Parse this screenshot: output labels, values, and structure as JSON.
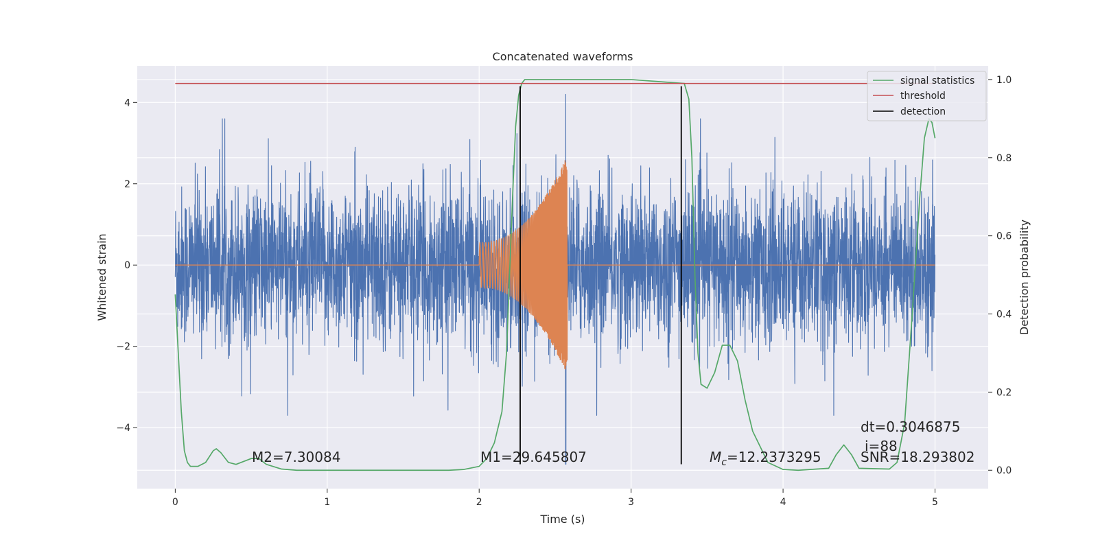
{
  "chart_data": {
    "type": "line",
    "title": "Concatenated waveforms",
    "xlabel": "Time (s)",
    "ylabel_left": "Whitened strain",
    "ylabel_right": "Detection probability",
    "xlim": [
      -0.25,
      5.35
    ],
    "ylim_left": [
      -5.5,
      4.9
    ],
    "ylim_right": [
      -0.047,
      1.035
    ],
    "x_ticks": [
      0,
      1,
      2,
      3,
      4,
      5
    ],
    "x_tick_labels": [
      "0",
      "1",
      "2",
      "3",
      "4",
      "5"
    ],
    "yl_ticks": [
      -4,
      -2,
      0,
      2,
      4
    ],
    "yl_tick_labels": [
      "−4",
      "−2",
      "0",
      "2",
      "4"
    ],
    "yr_ticks": [
      0.0,
      0.2,
      0.4,
      0.6,
      0.8,
      1.0
    ],
    "yr_tick_labels": [
      "0.0",
      "0.2",
      "0.4",
      "0.6",
      "0.8",
      "1.0"
    ],
    "series": [
      {
        "name": "strain",
        "axis": "left",
        "color": "#4c72b0",
        "description": "whitened detector strain, noise around 0 from t=0 to 5 s, spikes up to ~4.2 and down to ~-4.9 near t=2.57"
      },
      {
        "name": "waveform",
        "axis": "left",
        "color": "#dd8452",
        "description": "injected chirp waveform, zero except between t=2.0 and t=2.6 s, amplitude growing from ~0.6 to ~2.7",
        "start": 2.0,
        "merger": 2.58,
        "amp_start": 0.55,
        "amp_end": 2.7
      },
      {
        "name": "signal statistics",
        "axis": "right",
        "color": "#55a868",
        "x": [
          0.0,
          0.02,
          0.04,
          0.06,
          0.08,
          0.1,
          0.15,
          0.2,
          0.25,
          0.27,
          0.3,
          0.35,
          0.4,
          0.5,
          0.55,
          0.6,
          0.7,
          0.8,
          1.0,
          1.5,
          1.8,
          1.9,
          2.0,
          2.05,
          2.1,
          2.15,
          2.18,
          2.2,
          2.22,
          2.24,
          2.26,
          2.28,
          2.3,
          2.4,
          3.0,
          3.35,
          3.38,
          3.4,
          3.42,
          3.44,
          3.46,
          3.5,
          3.55,
          3.6,
          3.65,
          3.7,
          3.75,
          3.8,
          3.9,
          4.0,
          4.1,
          4.3,
          4.35,
          4.4,
          4.45,
          4.5,
          4.7,
          4.75,
          4.8,
          4.85,
          4.9,
          4.93,
          4.96,
          4.98,
          5.0
        ],
        "values": [
          0.45,
          0.3,
          0.15,
          0.05,
          0.02,
          0.01,
          0.01,
          0.02,
          0.05,
          0.055,
          0.045,
          0.02,
          0.015,
          0.03,
          0.03,
          0.015,
          0.003,
          0.0,
          0.0,
          0.0,
          0.0,
          0.002,
          0.01,
          0.03,
          0.07,
          0.15,
          0.3,
          0.5,
          0.7,
          0.88,
          0.96,
          0.99,
          1.0,
          1.0,
          1.0,
          0.99,
          0.95,
          0.8,
          0.5,
          0.3,
          0.22,
          0.21,
          0.25,
          0.32,
          0.32,
          0.28,
          0.18,
          0.1,
          0.02,
          0.002,
          0.0,
          0.005,
          0.04,
          0.065,
          0.04,
          0.005,
          0.003,
          0.02,
          0.12,
          0.4,
          0.7,
          0.85,
          0.9,
          0.89,
          0.85
        ]
      },
      {
        "name": "threshold",
        "axis": "right",
        "color": "#c44e52",
        "value": 0.99
      },
      {
        "name": "detection",
        "axis": "left",
        "color": "#000000",
        "x": [
          2.27,
          3.33
        ],
        "ymin": -4.9,
        "ymax": 4.4
      }
    ],
    "legend": {
      "position": "top-right",
      "entries": [
        {
          "label": "signal statistics",
          "color": "#55a868"
        },
        {
          "label": "threshold",
          "color": "#c44e52"
        },
        {
          "label": "detection",
          "color": "#000000"
        }
      ]
    },
    "annotations": [
      {
        "id": "m2",
        "text": "M2=7.30084"
      },
      {
        "id": "m1",
        "text": "M1=29.645807"
      },
      {
        "id": "mc",
        "text_symbol": "M",
        "text_sub": "c",
        "text_rest": "=12.2373295"
      },
      {
        "id": "dt",
        "text": "dt=0.3046875"
      },
      {
        "id": "i",
        "text": "i=88"
      },
      {
        "id": "snr",
        "text": "SNR=18.293802"
      }
    ],
    "grid": true,
    "background": "#eaeaf2"
  }
}
